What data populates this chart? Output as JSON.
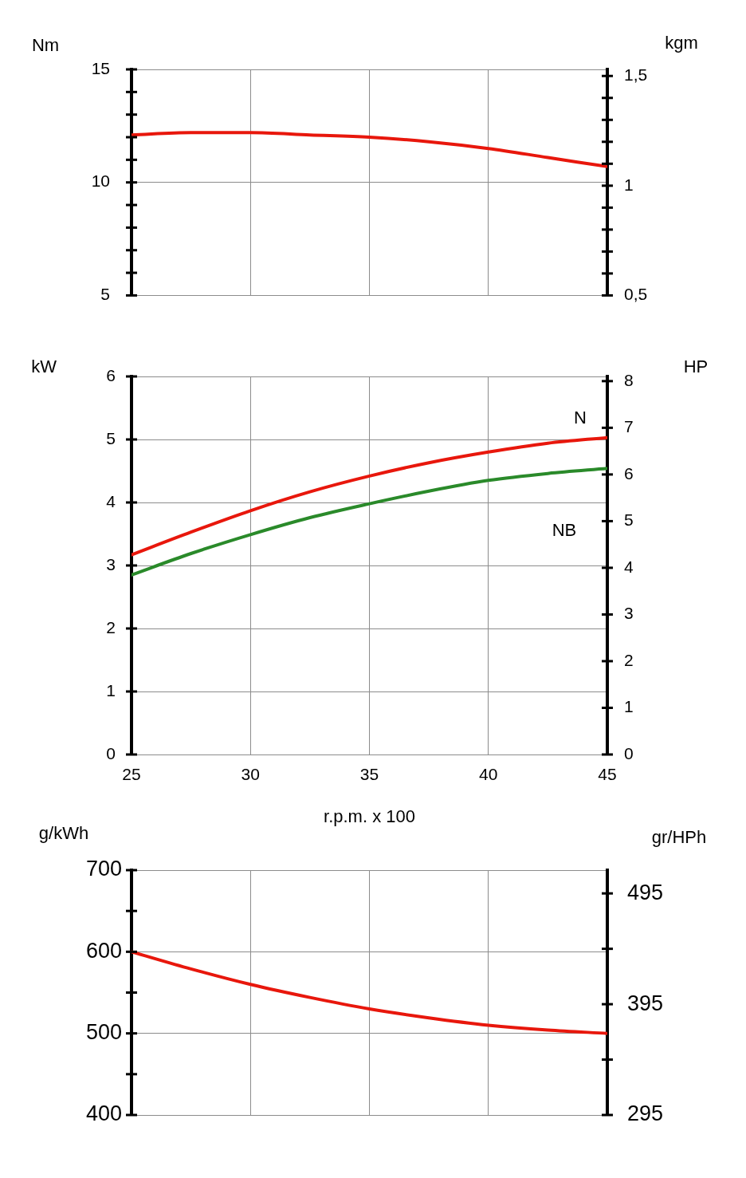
{
  "chart_data": [
    {
      "type": "line",
      "ylabel": "Nm",
      "y2label": "kgm",
      "x": [
        25,
        27.5,
        30,
        32.5,
        35,
        37.5,
        40,
        42.5,
        45
      ],
      "series": [
        {
          "color": "#e8170c",
          "values": [
            12.1,
            12.2,
            12.2,
            12.1,
            12.0,
            11.8,
            11.5,
            11.1,
            10.7
          ]
        }
      ],
      "xlim": [
        25,
        45
      ],
      "xticks": [
        25,
        30,
        35,
        40,
        45
      ],
      "ylim": [
        5,
        15
      ],
      "yticks": [
        5,
        {
          "value": 6,
          "label": null
        },
        {
          "value": 7,
          "label": null
        },
        {
          "value": 8,
          "label": null
        },
        {
          "value": 9,
          "label": null
        },
        10,
        {
          "value": 11,
          "label": null
        },
        {
          "value": 12,
          "label": null
        },
        {
          "value": 13,
          "label": null
        },
        {
          "value": 14,
          "label": null
        },
        15
      ],
      "y2lim": [
        0.5,
        1.53
      ],
      "y2ticks": [
        {
          "value": 0.5,
          "label": "0,5"
        },
        {
          "value": 0.6,
          "label": null
        },
        {
          "value": 0.7,
          "label": null
        },
        {
          "value": 0.8,
          "label": null
        },
        {
          "value": 0.9,
          "label": null
        },
        1,
        {
          "value": 1.1,
          "label": null
        },
        {
          "value": 1.2,
          "label": null
        },
        {
          "value": 1.3,
          "label": null
        },
        {
          "value": 1.4,
          "label": null
        },
        {
          "value": 1.5,
          "label": "1,5"
        }
      ],
      "grid": true,
      "tick_labels": "y"
    },
    {
      "type": "line",
      "ylabel": "kW",
      "y2label": "HP",
      "xlabel": "r.p.m. x 100",
      "x": [
        25,
        27.5,
        30,
        32.5,
        35,
        37.5,
        40,
        42.5,
        45
      ],
      "series": [
        {
          "name": "N",
          "color": "#e8170c",
          "values": [
            3.17,
            3.53,
            3.87,
            4.17,
            4.42,
            4.63,
            4.8,
            4.94,
            5.03
          ]
        },
        {
          "name": "NB",
          "color": "#2a8a2a",
          "values": [
            2.85,
            3.19,
            3.49,
            3.76,
            3.98,
            4.18,
            4.35,
            4.46,
            4.54
          ]
        }
      ],
      "xlim": [
        25,
        45
      ],
      "xticks": [
        25,
        30,
        35,
        40,
        45
      ],
      "ylim": [
        0,
        6
      ],
      "yticks": [
        0,
        1,
        2,
        3,
        4,
        5,
        6
      ],
      "y2lim": [
        0,
        8.1
      ],
      "y2ticks": [
        0,
        1,
        2,
        3,
        4,
        5,
        6,
        7,
        8
      ],
      "grid": true
    },
    {
      "type": "line",
      "ylabel": "g/kWh",
      "y2label": "gr/HPh",
      "x": [
        25,
        27.5,
        30,
        32.5,
        35,
        37.5,
        40,
        42.5,
        45
      ],
      "series": [
        {
          "color": "#e8170c",
          "values": [
            600,
            579,
            560,
            544,
            530,
            519,
            510,
            504,
            500
          ]
        }
      ],
      "xlim": [
        25,
        45
      ],
      "xticks": [
        25,
        30,
        35,
        40,
        45
      ],
      "ylim": [
        400,
        700
      ],
      "yticks": [
        400,
        {
          "value": 450,
          "label": null
        },
        500,
        {
          "value": 550,
          "label": null
        },
        600,
        {
          "value": 650,
          "label": null
        },
        700
      ],
      "y2lim": [
        295,
        516
      ],
      "y2ticks": [
        295,
        {
          "value": 345,
          "label": null
        },
        395,
        {
          "value": 445,
          "label": null
        },
        495
      ],
      "grid": true,
      "tick_labels": "y"
    }
  ]
}
